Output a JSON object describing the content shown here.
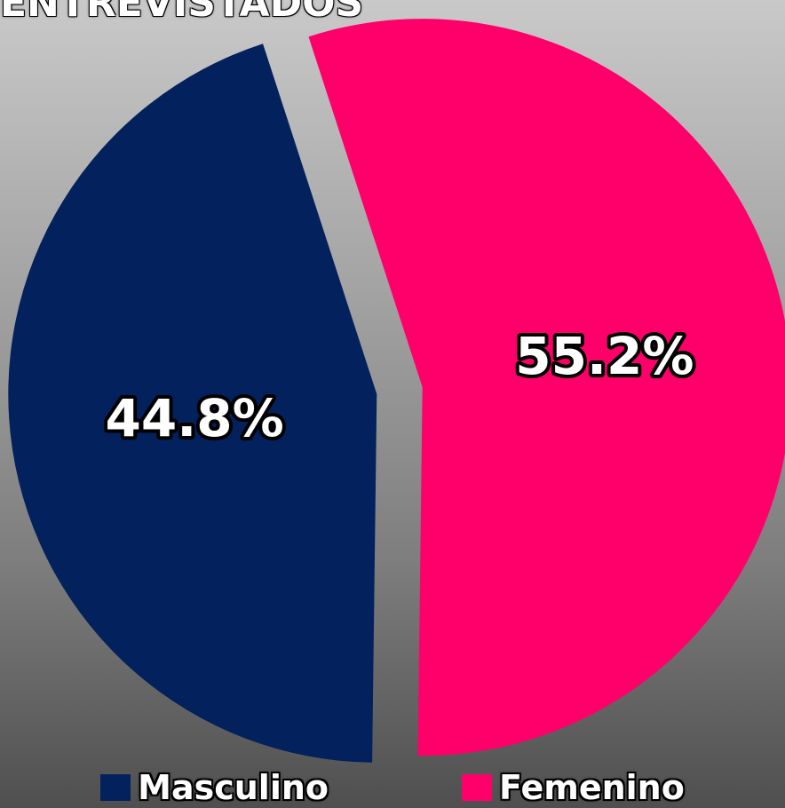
{
  "chart_data": {
    "type": "pie",
    "title": "ENTREVISTADOS",
    "slices": [
      {
        "name": "Masculino",
        "value": 44.8,
        "label": "44.8%",
        "color": "#03215c"
      },
      {
        "name": "Femenino",
        "value": 55.2,
        "label": "55.2%",
        "color": "#ff006a"
      }
    ],
    "legend": {
      "position": "bottom",
      "items": [
        "Masculino",
        "Femenino"
      ]
    },
    "background": "gray-gradient"
  }
}
